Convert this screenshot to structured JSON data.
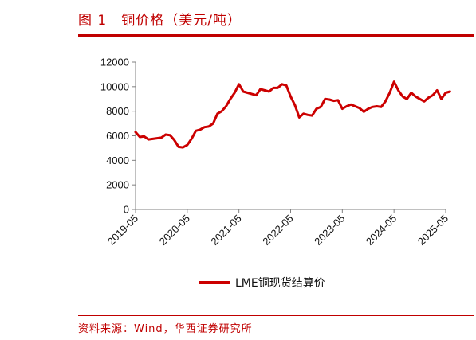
{
  "header": {
    "figure_number": "图 1",
    "title_text": "铜价格（美元/吨）"
  },
  "footer": {
    "source": "资料来源：Wind，华西证券研究所"
  },
  "colors": {
    "accent": "#c00000",
    "series": "#cc0000",
    "axis": "#808080"
  },
  "chart_data": {
    "type": "line",
    "title": "铜价格（美元/吨）",
    "xlabel": "",
    "ylabel": "",
    "ylim": [
      0,
      12000
    ],
    "yticks": [
      0,
      2000,
      4000,
      6000,
      8000,
      10000,
      12000
    ],
    "yticklabels": [
      "0",
      "2000",
      "4000",
      "6000",
      "8000",
      "10000",
      "12000"
    ],
    "xticklabels": [
      "2019-05",
      "2020-05",
      "2021-05",
      "2022-05",
      "2023-05",
      "2024-05",
      "2025-05"
    ],
    "grid": false,
    "legend_position": "bottom-center",
    "series": [
      {
        "name": "LME铜现货结算价",
        "x": [
          "2019-05",
          "2019-06",
          "2019-07",
          "2019-08",
          "2019-09",
          "2019-10",
          "2019-11",
          "2019-12",
          "2020-01",
          "2020-02",
          "2020-03",
          "2020-04",
          "2020-05",
          "2020-06",
          "2020-07",
          "2020-08",
          "2020-09",
          "2020-10",
          "2020-11",
          "2020-12",
          "2021-01",
          "2021-02",
          "2021-03",
          "2021-04",
          "2021-05",
          "2021-06",
          "2021-07",
          "2021-08",
          "2021-09",
          "2021-10",
          "2021-11",
          "2021-12",
          "2022-01",
          "2022-02",
          "2022-03",
          "2022-04",
          "2022-05",
          "2022-06",
          "2022-07",
          "2022-08",
          "2022-09",
          "2022-10",
          "2022-11",
          "2022-12",
          "2023-01",
          "2023-02",
          "2023-03",
          "2023-04",
          "2023-05",
          "2023-06",
          "2023-07",
          "2023-08",
          "2023-09",
          "2023-10",
          "2023-11",
          "2023-12",
          "2024-01",
          "2024-02",
          "2024-03",
          "2024-04",
          "2024-05",
          "2024-06",
          "2024-07",
          "2024-08",
          "2024-09",
          "2024-10",
          "2024-11",
          "2024-12",
          "2025-01",
          "2025-02",
          "2025-03",
          "2025-04",
          "2025-05",
          "2025-06"
        ],
        "y": [
          6300,
          5900,
          5950,
          5700,
          5750,
          5800,
          5850,
          6100,
          6050,
          5650,
          5100,
          5050,
          5250,
          5750,
          6400,
          6500,
          6700,
          6750,
          7000,
          7800,
          8000,
          8400,
          9000,
          9500,
          10200,
          9600,
          9500,
          9400,
          9300,
          9800,
          9700,
          9600,
          9900,
          9900,
          10200,
          10100,
          9200,
          8500,
          7500,
          7800,
          7700,
          7650,
          8200,
          8350,
          9000,
          8950,
          8850,
          8900,
          8200,
          8400,
          8550,
          8400,
          8250,
          7950,
          8200,
          8350,
          8400,
          8350,
          8800,
          9500,
          10400,
          9700,
          9200,
          9000,
          9500,
          9200,
          9000,
          8800,
          9100,
          9300,
          9700,
          9000,
          9500,
          9600
        ]
      }
    ]
  }
}
